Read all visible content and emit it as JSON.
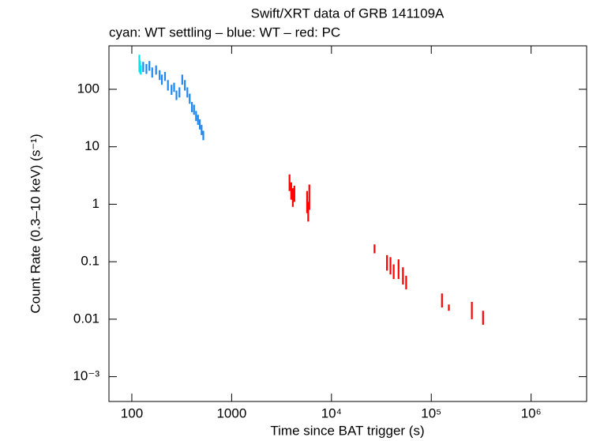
{
  "chart_data": {
    "type": "errorbar",
    "title": "Swift/XRT data of GRB 141109A",
    "subtitle": "cyan: WT settling – blue: WT – red: PC",
    "x_label": "Time since BAT trigger (s)",
    "y_label": "Count Rate (0.3–10 keV) (s⁻¹)",
    "log_x": true,
    "log_y": true,
    "xlim": [
      59,
      3600000
    ],
    "ylim": [
      0.00037,
      570
    ],
    "xticks": [
      100,
      1000,
      {
        "value": 10000,
        "label": "10⁴"
      },
      {
        "value": 100000,
        "label": "10⁵"
      },
      {
        "value": 1000000,
        "label": "10⁶"
      }
    ],
    "yticks": [
      100,
      10,
      1,
      0.1,
      0.01,
      {
        "value": 0.001,
        "label": "10⁻³"
      }
    ],
    "series": [
      {
        "name": "WT settling",
        "color": "#00e5ee",
        "x": [
          119,
          121,
          123
        ],
        "values": [
          300,
          250,
          220
        ],
        "errors": [
          100,
          60,
          40
        ]
      },
      {
        "name": "WT",
        "color": "#1e88f0",
        "x": [
          130,
          140,
          150,
          160,
          175,
          190,
          200,
          215,
          230,
          250,
          265,
          280,
          300,
          320,
          340,
          360,
          380,
          400,
          420,
          440,
          460,
          480,
          500,
          520
        ],
        "values": [
          250,
          230,
          260,
          200,
          220,
          180,
          150,
          170,
          120,
          100,
          110,
          80,
          90,
          150,
          120,
          90,
          70,
          50,
          45,
          35,
          30,
          25,
          20,
          16
        ],
        "errors": [
          50,
          45,
          50,
          40,
          40,
          35,
          30,
          30,
          25,
          20,
          20,
          15,
          18,
          30,
          25,
          18,
          14,
          10,
          9,
          7,
          6,
          5,
          4,
          3
        ]
      },
      {
        "name": "PC",
        "color": "#ff0000",
        "x": [
          3800,
          3950,
          4100,
          4250,
          5700,
          5850,
          6000,
          27000,
          36000,
          39000,
          42000,
          47000,
          52000,
          56000,
          128000,
          150000,
          255000,
          330000
        ],
        "values": [
          2.5,
          1.8,
          1.4,
          1.6,
          1.2,
          0.8,
          1.5,
          0.17,
          0.1,
          0.09,
          0.07,
          0.08,
          0.06,
          0.045,
          0.022,
          0.016,
          0.015,
          0.011
        ],
        "errors": [
          0.8,
          0.6,
          0.5,
          0.5,
          0.5,
          0.3,
          0.7,
          0.03,
          0.03,
          0.03,
          0.02,
          0.03,
          0.02,
          0.012,
          0.006,
          0.002,
          0.005,
          0.003
        ]
      }
    ]
  }
}
